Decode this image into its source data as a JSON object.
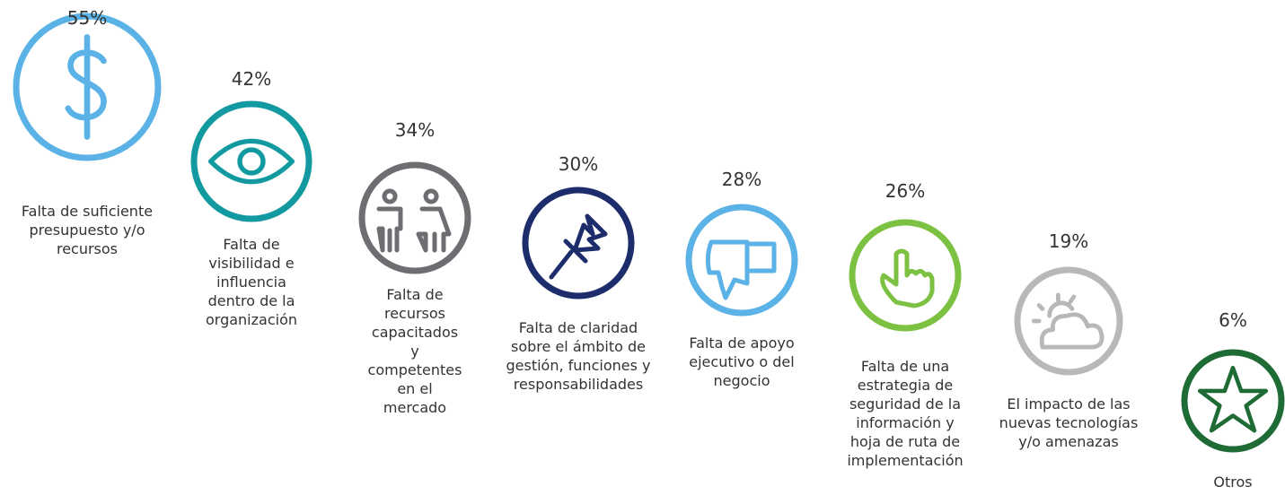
{
  "chart_data": {
    "type": "icon",
    "categories": [
      "Falta de suficiente presupuesto y/o recursos",
      "Falta de visibilidad e influencia dentro de la organización",
      "Falta de recursos capacitados y competentes en el mercado",
      "Falta de claridad sobre el ámbito de gestión, funciones y responsabilidades",
      "Falta de apoyo ejecutivo o del negocio",
      "Falta de una estrategia de seguridad de la información y hoja de ruta de implementación",
      "El impacto de las nuevas tecnologías y/o amenazas",
      "Otros"
    ],
    "values": [
      55,
      42,
      34,
      30,
      28,
      26,
      19,
      6
    ],
    "value_labels": [
      "55%",
      "42%",
      "34%",
      "30%",
      "28%",
      "26%",
      "19%",
      "6%"
    ],
    "colors": [
      "#5bb2e6",
      "#129aa0",
      "#6d6e71",
      "#1d2d6b",
      "#5bb2e6",
      "#7dc142",
      "#b8b8b8",
      "#1e6b36"
    ]
  }
}
